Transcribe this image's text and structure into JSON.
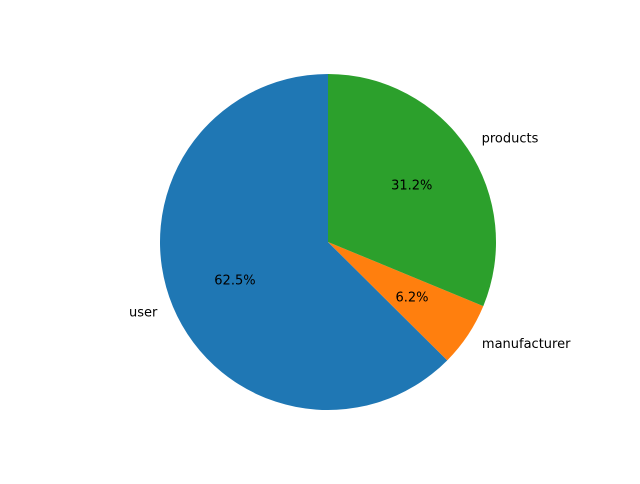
{
  "chart_data": {
    "type": "pie",
    "title": "",
    "slices": [
      {
        "label": "user",
        "value": 62.5,
        "pct_label": "62.5%",
        "color": "#1f77b4"
      },
      {
        "label": "manufacturer",
        "value": 6.2,
        "pct_label": "6.2%",
        "color": "#ff7f0e"
      },
      {
        "label": "products",
        "value": 31.2,
        "pct_label": "31.2%",
        "color": "#2ca02c"
      }
    ],
    "start_angle_deg": 90,
    "direction": "counterclockwise",
    "legend": "none"
  }
}
